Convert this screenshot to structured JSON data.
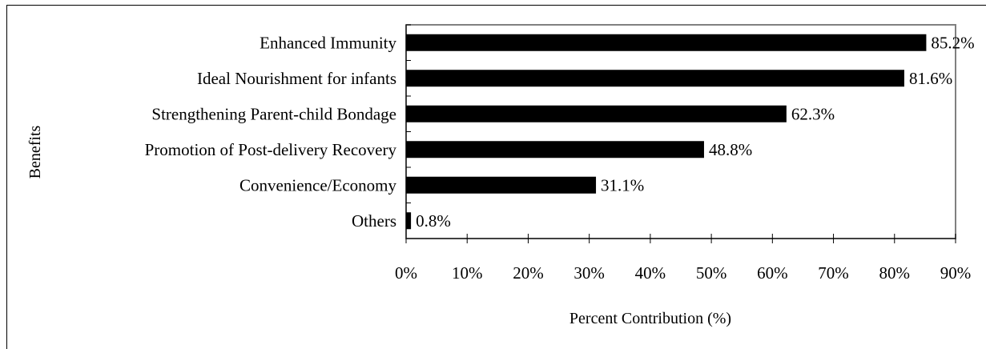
{
  "chart_data": {
    "type": "bar",
    "orientation": "horizontal",
    "categories": [
      "Enhanced Immunity",
      "Ideal Nourishment for infants",
      "Strengthening Parent-child Bondage",
      "Promotion of Post-delivery Recovery",
      "Convenience/Economy",
      "Others"
    ],
    "values": [
      85.2,
      81.6,
      62.3,
      48.8,
      31.1,
      0.8
    ],
    "data_labels": [
      "85.2%",
      "81.6%",
      "62.3%",
      "48.8%",
      "31.1%",
      "0.8%"
    ],
    "xlabel": "Percent Contribution (%)",
    "ylabel": "Benefits",
    "xlim": [
      0,
      90
    ],
    "x_ticks": [
      "0%",
      "10%",
      "20%",
      "30%",
      "40%",
      "50%",
      "60%",
      "70%",
      "80%",
      "90%"
    ],
    "grid": false,
    "bar_color": "#000000",
    "legend": "none"
  }
}
